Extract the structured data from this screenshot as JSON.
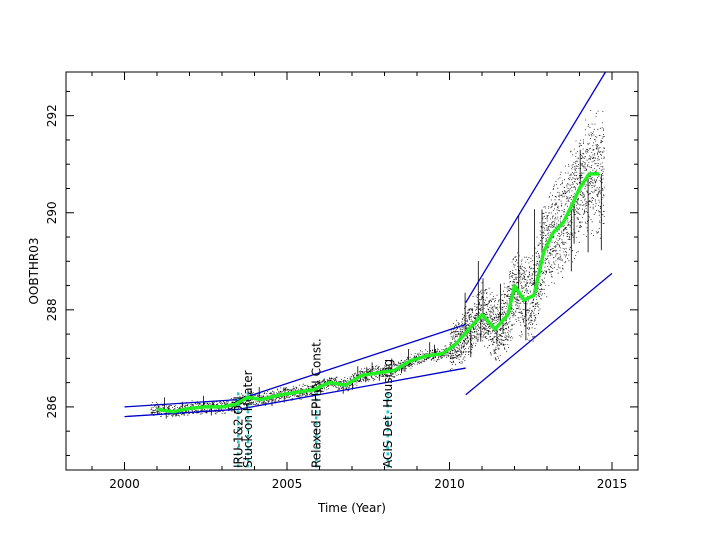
{
  "chart_data": {
    "type": "scatter",
    "xlabel": "Time (Year)",
    "ylabel": "OOBTHR03",
    "xlim": [
      1998.2,
      2015.8
    ],
    "ylim": [
      284.7,
      292.9
    ],
    "x_ticks": [
      2000,
      2005,
      2010,
      2015
    ],
    "y_ticks": [
      286,
      288,
      290,
      292
    ],
    "grid": false,
    "colors": {
      "points": "#000000",
      "smooth": "#22ee22",
      "envelope": "#0000cc",
      "events": "#22cccc"
    },
    "events": [
      {
        "x": 2003.5,
        "label": "IRU-1&2 ON"
      },
      {
        "x": 2003.8,
        "label": "Stuck-on Heater"
      },
      {
        "x": 2005.9,
        "label": "Relaxed EPHIN Const."
      },
      {
        "x": 2008.1,
        "label": "ACIS Det. Housing"
      }
    ],
    "series": [
      {
        "type": "smooth",
        "values": [
          [
            2001.0,
            285.95
          ],
          [
            2001.5,
            285.9
          ],
          [
            2002.0,
            285.97
          ],
          [
            2002.5,
            286.0
          ],
          [
            2003.0,
            286.0
          ],
          [
            2003.4,
            286.05
          ],
          [
            2003.8,
            286.2
          ],
          [
            2004.2,
            286.15
          ],
          [
            2004.8,
            286.25
          ],
          [
            2005.3,
            286.3
          ],
          [
            2005.8,
            286.35
          ],
          [
            2006.3,
            286.5
          ],
          [
            2006.8,
            286.45
          ],
          [
            2007.3,
            286.65
          ],
          [
            2007.8,
            286.7
          ],
          [
            2008.3,
            286.75
          ],
          [
            2008.8,
            286.95
          ],
          [
            2009.3,
            287.05
          ],
          [
            2009.8,
            287.1
          ],
          [
            2010.2,
            287.3
          ],
          [
            2010.6,
            287.6
          ],
          [
            2011.0,
            287.9
          ],
          [
            2011.4,
            287.6
          ],
          [
            2011.8,
            287.9
          ],
          [
            2012.0,
            288.5
          ],
          [
            2012.3,
            288.2
          ],
          [
            2012.6,
            288.3
          ],
          [
            2012.9,
            289.2
          ],
          [
            2013.2,
            289.6
          ],
          [
            2013.5,
            289.8
          ],
          [
            2013.8,
            290.2
          ],
          [
            2014.0,
            290.5
          ],
          [
            2014.3,
            290.8
          ],
          [
            2014.6,
            290.8
          ]
        ]
      },
      {
        "type": "envelope",
        "segments": [
          [
            [
              2000.0,
              286.0
            ],
            [
              2003.5,
              286.15
            ]
          ],
          [
            [
              2000.0,
              285.8
            ],
            [
              2003.5,
              285.95
            ]
          ],
          [
            [
              2003.5,
              286.15
            ],
            [
              2010.5,
              287.7
            ]
          ],
          [
            [
              2003.5,
              285.95
            ],
            [
              2010.5,
              286.8
            ]
          ],
          [
            [
              2010.5,
              288.15
            ],
            [
              2014.8,
              292.9
            ]
          ],
          [
            [
              2010.5,
              286.25
            ],
            [
              2015.0,
              288.75
            ]
          ]
        ]
      }
    ]
  }
}
